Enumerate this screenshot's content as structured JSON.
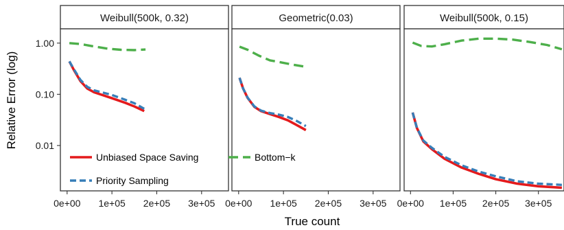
{
  "chart_data": {
    "type": "line",
    "xlabel": "True count",
    "ylabel": "Relative Error (log)",
    "y_scale": "log10",
    "ylim": [
      0.0013,
      1.9
    ],
    "xlim": [
      -15000,
      360000
    ],
    "x_ticks": [
      0,
      100000,
      200000,
      300000
    ],
    "x_tick_labels": [
      "0e+00",
      "1e+05",
      "2e+05",
      "3e+05"
    ],
    "y_ticks": [
      0.01,
      0.1,
      1.0
    ],
    "y_tick_labels": [
      "0.01",
      "0.10",
      "1.00"
    ],
    "grid": false,
    "legend": {
      "placement": "inside-bottom-left",
      "entries": [
        {
          "label": "Unbiased Space Saving",
          "color": "#e41a1c",
          "dash": "solid"
        },
        {
          "label": "Bottom−k",
          "color": "#4daf4a",
          "dash": "dashed"
        },
        {
          "label": "Priority Sampling",
          "color": "#377eb8",
          "dash": "dashed"
        }
      ]
    },
    "colors": {
      "uss": "#e41a1c",
      "bottomk": "#4daf4a",
      "priority": "#377eb8"
    },
    "panels": [
      {
        "strip": "Weibull(500k, 0.32)",
        "series": [
          {
            "name": "Bottom−k",
            "key": "bottomk",
            "x": [
              5000,
              30000,
              60000,
              90000,
              120000,
              150000,
              175000
            ],
            "y": [
              1.0,
              0.96,
              0.86,
              0.78,
              0.74,
              0.73,
              0.75
            ]
          },
          {
            "name": "Unbiased Space Saving",
            "key": "uss",
            "x": [
              5000,
              15000,
              30000,
              45000,
              60000,
              80000,
              100000,
              130000,
              150000,
              172000
            ],
            "y": [
              0.44,
              0.3,
              0.18,
              0.13,
              0.11,
              0.096,
              0.084,
              0.068,
              0.058,
              0.047
            ]
          },
          {
            "name": "Priority Sampling",
            "key": "priority",
            "x": [
              5000,
              15000,
              30000,
              45000,
              60000,
              80000,
              100000,
              130000,
              150000,
              172000
            ],
            "y": [
              0.44,
              0.31,
              0.19,
              0.14,
              0.12,
              0.108,
              0.097,
              0.078,
              0.067,
              0.052
            ]
          }
        ]
      },
      {
        "strip": "Geometric(0.03)",
        "series": [
          {
            "name": "Bottom−k",
            "key": "bottomk",
            "x": [
              2000,
              20000,
              45000,
              70000,
              95000,
              120000,
              145000
            ],
            "y": [
              0.85,
              0.74,
              0.57,
              0.46,
              0.42,
              0.38,
              0.35
            ]
          },
          {
            "name": "Unbiased Space Saving",
            "key": "uss",
            "x": [
              2000,
              10000,
              20000,
              35000,
              50000,
              70000,
              90000,
              110000,
              130000,
              150000
            ],
            "y": [
              0.21,
              0.13,
              0.085,
              0.057,
              0.047,
              0.041,
              0.036,
              0.031,
              0.025,
              0.02
            ]
          },
          {
            "name": "Priority Sampling",
            "key": "priority",
            "x": [
              2000,
              10000,
              20000,
              35000,
              50000,
              70000,
              90000,
              110000,
              130000,
              150000
            ],
            "y": [
              0.21,
              0.13,
              0.086,
              0.058,
              0.048,
              0.043,
              0.04,
              0.036,
              0.03,
              0.024
            ]
          }
        ]
      },
      {
        "strip": "Weibull(500k, 0.15)",
        "series": [
          {
            "name": "Bottom−k",
            "key": "bottomk",
            "x": [
              5000,
              25000,
              50000,
              80000,
              120000,
              160000,
              200000,
              240000,
              280000,
              320000,
              355000
            ],
            "y": [
              1.02,
              0.88,
              0.86,
              0.95,
              1.12,
              1.22,
              1.22,
              1.17,
              1.05,
              0.92,
              0.76
            ]
          },
          {
            "name": "Unbiased Space Saving",
            "key": "uss",
            "x": [
              5000,
              15000,
              30000,
              50000,
              80000,
              120000,
              160000,
              200000,
              250000,
              300000,
              355000
            ],
            "y": [
              0.044,
              0.022,
              0.012,
              0.0085,
              0.0055,
              0.0037,
              0.0028,
              0.0022,
              0.0018,
              0.0016,
              0.0015
            ]
          },
          {
            "name": "Priority Sampling",
            "key": "priority",
            "x": [
              5000,
              15000,
              30000,
              50000,
              80000,
              120000,
              160000,
              200000,
              250000,
              300000,
              355000
            ],
            "y": [
              0.044,
              0.022,
              0.0125,
              0.009,
              0.006,
              0.0041,
              0.0031,
              0.0025,
              0.002,
              0.0018,
              0.0017
            ]
          }
        ]
      }
    ]
  }
}
